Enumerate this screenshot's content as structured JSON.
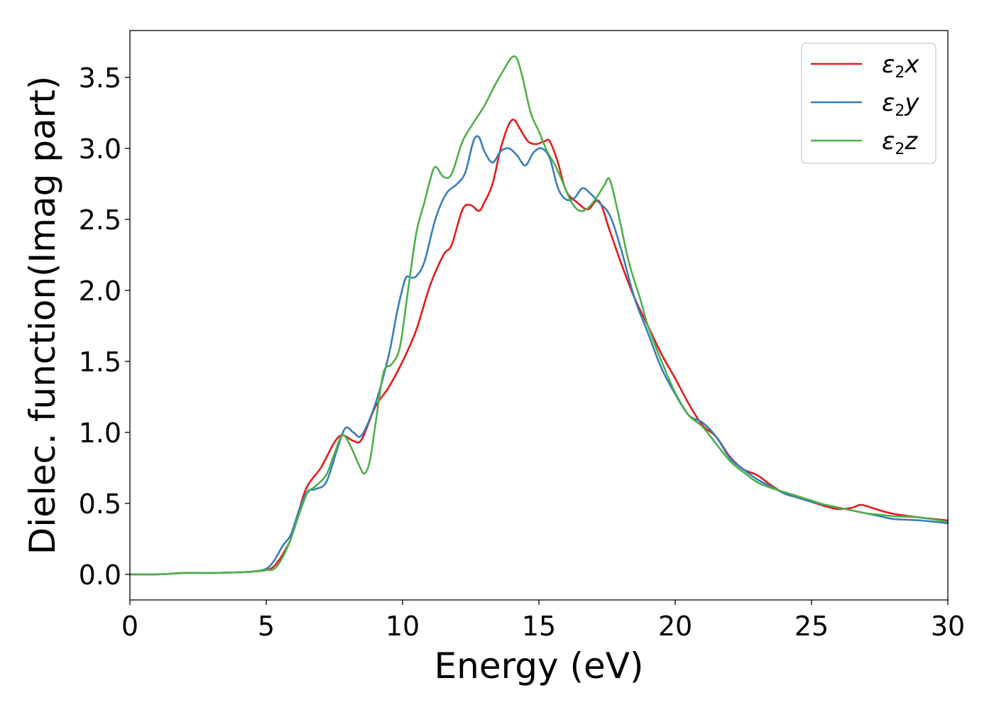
{
  "chart_data": {
    "type": "line",
    "xlabel": "Energy (eV)",
    "ylabel": "Dielec. function(Imag part)",
    "xlim": [
      0,
      30
    ],
    "ylim": [
      -0.18,
      3.83
    ],
    "xticks": [
      0,
      5,
      10,
      15,
      20,
      25,
      30
    ],
    "yticks": [
      0.0,
      0.5,
      1.0,
      1.5,
      2.0,
      2.5,
      3.0,
      3.5
    ],
    "grid": false,
    "legend_position": "top-right",
    "series": [
      {
        "name": "ε2x",
        "legend_base": "ε",
        "legend_sub": "2",
        "legend_suffix": "x",
        "color": "#e41a1c",
        "x": [
          0,
          1,
          2,
          3,
          4,
          4.5,
          5,
          5.3,
          5.6,
          5.9,
          6.2,
          6.5,
          7,
          7.5,
          7.8,
          8.2,
          8.5,
          9,
          9.5,
          10,
          10.5,
          11,
          11.5,
          11.8,
          12.2,
          12.5,
          12.8,
          13,
          13.3,
          13.6,
          13.9,
          14.1,
          14.3,
          14.6,
          14.9,
          15.2,
          15.4,
          15.7,
          16.0,
          16.4,
          16.8,
          17.2,
          17.6,
          18,
          18.5,
          19,
          19.5,
          20,
          20.5,
          21,
          21.5,
          22,
          22.5,
          23,
          23.5,
          24,
          24.5,
          25,
          25.5,
          26,
          26.5,
          26.8,
          27.2,
          27.7,
          28.2,
          29,
          29.5,
          30
        ],
        "y": [
          0.0,
          0.0,
          0.01,
          0.01,
          0.015,
          0.02,
          0.03,
          0.06,
          0.14,
          0.25,
          0.45,
          0.62,
          0.75,
          0.93,
          0.98,
          0.94,
          0.95,
          1.18,
          1.32,
          1.5,
          1.72,
          2.03,
          2.25,
          2.32,
          2.57,
          2.6,
          2.56,
          2.62,
          2.75,
          3.0,
          3.17,
          3.2,
          3.14,
          3.05,
          3.03,
          3.05,
          3.05,
          2.9,
          2.7,
          2.62,
          2.57,
          2.63,
          2.42,
          2.2,
          1.95,
          1.75,
          1.55,
          1.38,
          1.2,
          1.05,
          0.97,
          0.83,
          0.74,
          0.7,
          0.63,
          0.57,
          0.54,
          0.51,
          0.48,
          0.46,
          0.47,
          0.49,
          0.47,
          0.44,
          0.42,
          0.4,
          0.39,
          0.38
        ]
      },
      {
        "name": "ε2y",
        "legend_base": "ε",
        "legend_sub": "2",
        "legend_suffix": "y",
        "color": "#377eb8",
        "x": [
          0,
          1,
          2,
          3,
          4,
          4.5,
          5,
          5.3,
          5.6,
          5.9,
          6.2,
          6.5,
          6.8,
          7.2,
          7.6,
          7.9,
          8.2,
          8.5,
          9,
          9.5,
          9.8,
          10.1,
          10.3,
          10.5,
          10.8,
          11.2,
          11.6,
          12,
          12.3,
          12.6,
          12.8,
          13.0,
          13.3,
          13.6,
          13.9,
          14.2,
          14.5,
          14.8,
          15.1,
          15.4,
          15.7,
          16.0,
          16.3,
          16.6,
          16.9,
          17.2,
          17.6,
          18,
          18.5,
          19,
          19.5,
          20,
          20.5,
          21,
          21.5,
          22,
          22.5,
          23,
          23.5,
          24,
          24.5,
          25,
          25.5,
          26,
          26.5,
          27,
          27.5,
          28,
          29,
          30
        ],
        "y": [
          0.0,
          0.0,
          0.01,
          0.01,
          0.015,
          0.02,
          0.04,
          0.1,
          0.2,
          0.28,
          0.45,
          0.58,
          0.6,
          0.65,
          0.88,
          1.03,
          1.0,
          0.98,
          1.2,
          1.55,
          1.85,
          2.08,
          2.09,
          2.1,
          2.2,
          2.5,
          2.68,
          2.75,
          2.83,
          3.05,
          3.08,
          2.98,
          2.9,
          2.98,
          3.0,
          2.95,
          2.88,
          2.97,
          3.0,
          2.93,
          2.72,
          2.64,
          2.65,
          2.72,
          2.68,
          2.62,
          2.53,
          2.3,
          1.95,
          1.7,
          1.45,
          1.27,
          1.12,
          1.07,
          0.97,
          0.82,
          0.74,
          0.67,
          0.62,
          0.57,
          0.54,
          0.51,
          0.49,
          0.47,
          0.45,
          0.43,
          0.41,
          0.39,
          0.38,
          0.36
        ]
      },
      {
        "name": "ε2z",
        "legend_base": "ε",
        "legend_sub": "2",
        "legend_suffix": "z",
        "color": "#4daf4a",
        "x": [
          0,
          1,
          2,
          3,
          4,
          4.5,
          5,
          5.3,
          5.6,
          5.9,
          6.2,
          6.5,
          6.8,
          7.2,
          7.5,
          7.8,
          8.1,
          8.4,
          8.6,
          8.8,
          9.0,
          9.3,
          9.6,
          9.9,
          10.2,
          10.5,
          10.8,
          11.0,
          11.2,
          11.5,
          11.8,
          12.2,
          12.6,
          13.0,
          13.4,
          13.7,
          14.0,
          14.2,
          14.4,
          14.7,
          15.0,
          15.3,
          15.6,
          15.9,
          16.2,
          16.5,
          16.8,
          17.1,
          17.4,
          17.6,
          17.9,
          18.3,
          18.7,
          19,
          19.5,
          20,
          20.5,
          21,
          21.5,
          22,
          22.5,
          23,
          23.5,
          24,
          24.5,
          25,
          25.5,
          26,
          26.5,
          27,
          27.5,
          28,
          29,
          30
        ],
        "y": [
          0.0,
          0.0,
          0.01,
          0.01,
          0.015,
          0.02,
          0.03,
          0.04,
          0.12,
          0.25,
          0.42,
          0.57,
          0.62,
          0.7,
          0.85,
          0.98,
          0.9,
          0.77,
          0.71,
          0.8,
          1.05,
          1.42,
          1.48,
          1.6,
          2.0,
          2.4,
          2.62,
          2.77,
          2.87,
          2.8,
          2.82,
          3.05,
          3.18,
          3.3,
          3.45,
          3.55,
          3.64,
          3.63,
          3.5,
          3.25,
          3.12,
          2.98,
          2.88,
          2.75,
          2.62,
          2.56,
          2.58,
          2.65,
          2.74,
          2.78,
          2.55,
          2.2,
          1.95,
          1.75,
          1.5,
          1.28,
          1.12,
          1.04,
          0.92,
          0.8,
          0.72,
          0.65,
          0.61,
          0.58,
          0.55,
          0.52,
          0.49,
          0.47,
          0.45,
          0.43,
          0.42,
          0.41,
          0.4,
          0.37
        ]
      }
    ]
  }
}
